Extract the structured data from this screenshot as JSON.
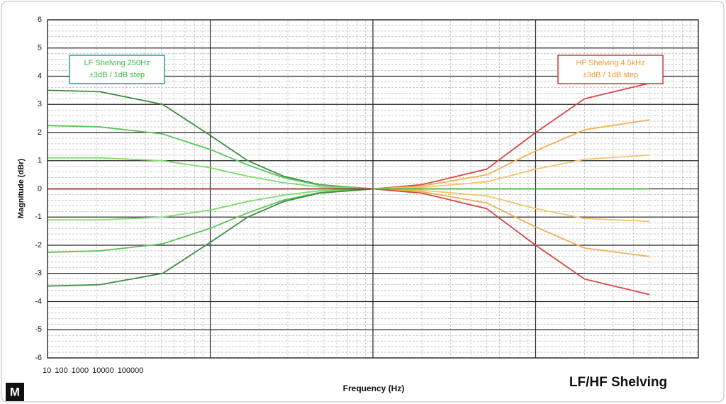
{
  "chart_data": {
    "type": "line",
    "title": "LF/HF Shelving",
    "logo": "M",
    "x_label": "Frequency (Hz)",
    "y_label": "Magnitude (dBr)",
    "x_log": true,
    "xlim": [
      10,
      100000
    ],
    "xticks": [
      10,
      100,
      1000,
      10000,
      100000
    ],
    "ylim": [
      -6,
      6
    ],
    "yticks": [
      -6,
      -5,
      -4,
      -3,
      -2,
      -1,
      0,
      1,
      2,
      3,
      4,
      5,
      6
    ],
    "grid": true,
    "minor_grid": true,
    "annotations": [
      {
        "lines": [
          "LF Shelving  250Hz",
          "±3dB / 1dB step"
        ],
        "color": "#3cb84a",
        "border": "#2a9a9a"
      },
      {
        "lines": [
          "HF Shelving  4.5kHz",
          "±3dB / 1dB step"
        ],
        "color": "#e89a30",
        "border": "#c83a3a"
      }
    ],
    "series": [
      {
        "color": "#3f8a40",
        "x": [
          10,
          21,
          51,
          100,
          170,
          282,
          468,
          1000
        ],
        "values": [
          3.5,
          3.45,
          3.0,
          1.9,
          1.0,
          0.45,
          0.15,
          0
        ]
      },
      {
        "color": "#5cc45c",
        "x": [
          10,
          21,
          51,
          100,
          170,
          282,
          468,
          1000
        ],
        "values": [
          2.25,
          2.2,
          1.95,
          1.4,
          0.85,
          0.4,
          0.13,
          0
        ]
      },
      {
        "color": "#7ddc6a",
        "x": [
          10,
          21,
          51,
          100,
          170,
          282,
          468,
          1000
        ],
        "values": [
          1.1,
          1.1,
          1.0,
          0.75,
          0.45,
          0.22,
          0.07,
          0
        ]
      },
      {
        "color": "#7ddc6a",
        "x": [
          10,
          21,
          51,
          100,
          170,
          282,
          468,
          1000
        ],
        "values": [
          -1.1,
          -1.1,
          -1.0,
          -0.75,
          -0.45,
          -0.22,
          -0.07,
          0
        ]
      },
      {
        "color": "#5cc45c",
        "x": [
          10,
          21,
          51,
          100,
          170,
          282,
          468,
          1000
        ],
        "values": [
          -2.25,
          -2.2,
          -1.95,
          -1.4,
          -0.85,
          -0.4,
          -0.13,
          0
        ]
      },
      {
        "color": "#3f8a40",
        "x": [
          10,
          21,
          51,
          100,
          170,
          282,
          468,
          1000
        ],
        "values": [
          -3.45,
          -3.4,
          -3.0,
          -1.9,
          -1.0,
          -0.45,
          -0.15,
          0
        ]
      },
      {
        "color": "#a03030",
        "x": [
          10,
          1000
        ],
        "values": [
          0,
          0
        ]
      },
      {
        "color": "#d84545",
        "x": [
          1000,
          2000,
          5000,
          10000,
          20000,
          50000
        ],
        "values": [
          0,
          0.15,
          0.7,
          2.0,
          3.2,
          3.75
        ]
      },
      {
        "color": "#f0b050",
        "x": [
          1000,
          2000,
          5000,
          10000,
          20000,
          50000
        ],
        "values": [
          0,
          0.1,
          0.5,
          1.35,
          2.1,
          2.45
        ]
      },
      {
        "color": "#f4c468",
        "x": [
          1000,
          2000,
          5000,
          10000,
          20000,
          50000
        ],
        "values": [
          0,
          0.05,
          0.25,
          0.7,
          1.05,
          1.2
        ]
      },
      {
        "color": "#f4c468",
        "x": [
          1000,
          2000,
          5000,
          10000,
          20000,
          50000
        ],
        "values": [
          0,
          -0.05,
          -0.25,
          -0.7,
          -1.05,
          -1.15
        ]
      },
      {
        "color": "#f0b050",
        "x": [
          1000,
          2000,
          5000,
          10000,
          20000,
          50000
        ],
        "values": [
          0,
          -0.1,
          -0.5,
          -1.35,
          -2.1,
          -2.4
        ]
      },
      {
        "color": "#d84545",
        "x": [
          1000,
          2000,
          5000,
          10000,
          20000,
          50000
        ],
        "values": [
          0,
          -0.15,
          -0.7,
          -2.0,
          -3.2,
          -3.75
        ]
      },
      {
        "color": "#3cb83c",
        "x": [
          1000,
          50000
        ],
        "values": [
          0,
          0
        ]
      }
    ]
  }
}
